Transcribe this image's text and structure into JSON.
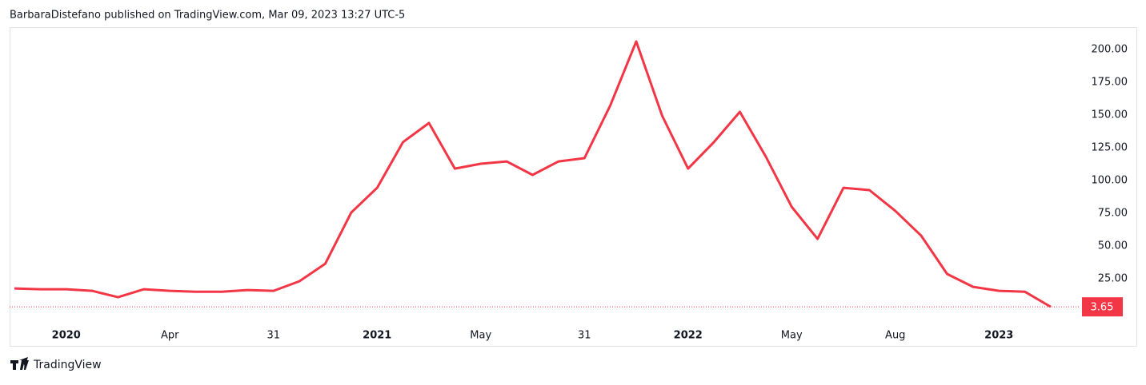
{
  "header": {
    "text": "BarbaraDistefano published on TradingView.com, Mar 09, 2023 13:27 UTC-5"
  },
  "footer": {
    "brand": "TradingView"
  },
  "chart_data": {
    "type": "line",
    "categories": [
      null,
      null,
      "2020",
      null,
      null,
      null,
      "Apr",
      null,
      null,
      null,
      "31",
      null,
      null,
      null,
      "2021",
      null,
      null,
      null,
      "May",
      null,
      null,
      null,
      "31",
      null,
      null,
      null,
      "2022",
      null,
      null,
      null,
      "May",
      null,
      null,
      null,
      "Aug",
      null,
      null,
      null,
      "2023",
      null,
      null
    ],
    "series": [
      {
        "color": "#f23645",
        "values": [
          17.7,
          17.1,
          17.1,
          15.9,
          11.0,
          17.1,
          15.9,
          15.2,
          15.2,
          16.5,
          15.9,
          23.2,
          36.6,
          75.6,
          94.5,
          129.3,
          143.9,
          109.1,
          112.8,
          114.6,
          104.3,
          114.6,
          117.1,
          157.3,
          206.1,
          149.4,
          109.1,
          129.3,
          152.4,
          118.3,
          79.9,
          55.5,
          94.5,
          92.7,
          76.8,
          57.9,
          28.7,
          18.9,
          15.9,
          15.2,
          3.65
        ]
      }
    ],
    "ylim": [
      -6,
      217
    ],
    "yticks": [
      {
        "value": 25,
        "label": "25.00"
      },
      {
        "value": 50,
        "label": "50.00"
      },
      {
        "value": 75,
        "label": "75.00"
      },
      {
        "value": 100,
        "label": "100.00"
      },
      {
        "value": 125,
        "label": "125.00"
      },
      {
        "value": 150,
        "label": "150.00"
      },
      {
        "value": 175,
        "label": "175.00"
      },
      {
        "value": 200,
        "label": "200.00"
      }
    ],
    "grid": false
  }
}
